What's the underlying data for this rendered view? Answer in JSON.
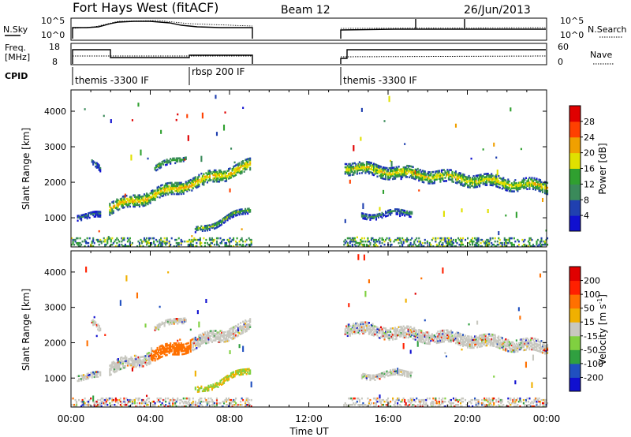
{
  "header": {
    "site": "Fort Hays West (fitACF)",
    "beam": "Beam 12",
    "date": "26/Jun/2013"
  },
  "panels": {
    "nsky_label": "N.Sky",
    "nsky_ticks": [
      "10^5",
      "10^0"
    ],
    "nsearch_label": "N.Search",
    "freq_label_1": "Freq.",
    "freq_label_2": "[MHz]",
    "freq_ticks": [
      "18",
      "8"
    ],
    "nave_label": "Nave",
    "nave_ticks": [
      "60",
      "0"
    ],
    "cpid_label": "CPID",
    "cpid_segments": [
      {
        "label": "themis -3300 IF",
        "start_h": 0.0
      },
      {
        "label": "rbsp 200 IF",
        "start_h": 6.0
      },
      {
        "label": "themis -3300 IF",
        "start_h": 13.8
      }
    ]
  },
  "chart_data": [
    {
      "type": "heatmap",
      "name": "Power",
      "ylabel": "Slant Range [km]",
      "yticks": [
        1000,
        2000,
        3000,
        4000
      ],
      "ylim": [
        180,
        4600
      ],
      "xlim": [
        0,
        24
      ],
      "colorbar_label": "Power [dB]",
      "colorbar_ticks": [
        4,
        8,
        12,
        16,
        20,
        24,
        28
      ],
      "colorbar_range": [
        0,
        32
      ],
      "colorbar_colors": [
        "#1010d0",
        "#2040b0",
        "#3a8a5a",
        "#30a030",
        "#e0e000",
        "#f0a000",
        "#ff4000",
        "#e00000"
      ],
      "data_gaps_h": [
        [
          9.1,
          13.7
        ]
      ],
      "echo_bands": [
        {
          "t0": 1.9,
          "t1": 9.05,
          "r0": 1250,
          "r1": 2450,
          "peak_db": 22
        },
        {
          "t0": 13.8,
          "t1": 24,
          "r0": 2400,
          "r1": 1850,
          "peak_db": 20
        },
        {
          "t0": 6.2,
          "t1": 9.05,
          "r0": 600,
          "r1": 1250,
          "peak_db": 14
        },
        {
          "t0": 14.6,
          "t1": 17.2,
          "r0": 1050,
          "r1": 1150,
          "peak_db": 10
        },
        {
          "t0": 0.3,
          "t1": 1.5,
          "r0": 1050,
          "r1": 1050,
          "peak_db": 8
        },
        {
          "t0": 1.0,
          "t1": 1.5,
          "r0": 2550,
          "r1": 2350,
          "peak_db": 8
        },
        {
          "t0": 4.2,
          "t1": 5.8,
          "r0": 2400,
          "r1": 2700,
          "peak_db": 14
        }
      ]
    },
    {
      "type": "heatmap",
      "name": "Velocity",
      "ylabel": "Slant Range [km]",
      "yticks": [
        1000,
        2000,
        3000,
        4000
      ],
      "ylim": [
        180,
        4600
      ],
      "xlim": [
        0,
        24
      ],
      "xticks": [
        "00:00",
        "04:00",
        "08:00",
        "12:00",
        "16:00",
        "20:00",
        "00:00"
      ],
      "xlabel": "Time UT",
      "colorbar_label": "Velocity [m s",
      "colorbar_label_sup": "-1",
      "colorbar_label_end": "]",
      "colorbar_ticks": [
        "200",
        "100",
        "50",
        "15",
        "-15",
        "-50",
        "-100",
        "-200"
      ],
      "colorbar_colors": [
        "#1010d0",
        "#2050c0",
        "#30a040",
        "#80d040",
        "#c8c8c0",
        "#f0b000",
        "#ff7000",
        "#ff2000",
        "#e00000"
      ],
      "data_gaps_h": [
        [
          9.1,
          13.7
        ]
      ]
    }
  ]
}
